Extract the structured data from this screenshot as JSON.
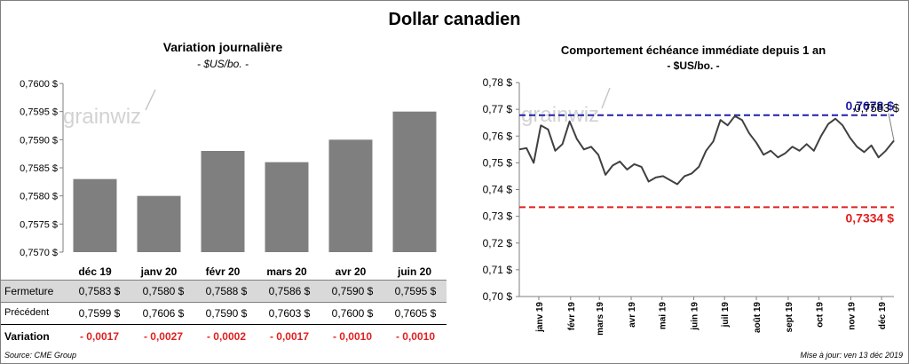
{
  "title": "Dollar canadien",
  "left": {
    "title": "Variation  journalière",
    "subtitle": "- $US/bo. -",
    "watermark": "grainwiz",
    "table": {
      "row_labels": {
        "close": "Fermeture",
        "previous": "Précédent",
        "change": "Variation"
      },
      "close": [
        "0,7583  $",
        "0,7580  $",
        "0,7588  $",
        "0,7586  $",
        "0,7590  $",
        "0,7595  $"
      ],
      "previous": [
        "0,7599  $",
        "0,7606  $",
        "0,7590  $",
        "0,7603  $",
        "0,7600  $",
        "0,7605  $"
      ],
      "change": [
        "- 0,0017",
        "- 0,0027",
        "- 0,0002",
        "- 0,0017",
        "- 0,0010",
        "- 0,0010"
      ]
    }
  },
  "right": {
    "title": "Comportement échéance immédiate depuis 1 an",
    "subtitle": "- $US/bo. -",
    "watermark": "grainwiz",
    "high_label": "0,7678 $",
    "low_label": "0,7334 $",
    "last_label": "0,7583 $"
  },
  "footer": {
    "source": "Source: CME Group",
    "updated": "Mise à jour: ven 13 déc 2019"
  },
  "colors": {
    "bar": "#7f7f7f",
    "line": "#404040",
    "high": "#1f1fa8",
    "low": "#e02020",
    "negative": "#e02020"
  },
  "chart_data": [
    {
      "type": "bar",
      "title": "Variation  journalière",
      "subtitle": "- $US/bo. -",
      "categories": [
        "déc 19",
        "janv 20",
        "févr 20",
        "mars 20",
        "avr 20",
        "juin 20"
      ],
      "values": [
        0.7583,
        0.758,
        0.7588,
        0.7586,
        0.759,
        0.7595
      ],
      "ylim": [
        0.757,
        0.76
      ],
      "yticks": [
        0.757,
        0.7575,
        0.758,
        0.7585,
        0.759,
        0.7595,
        0.76
      ],
      "ytick_labels": [
        "0,7570 $",
        "0,7575 $",
        "0,7580 $",
        "0,7585 $",
        "0,7590 $",
        "0,7595 $",
        "0,7600 $"
      ],
      "grid": false
    },
    {
      "type": "line",
      "title": "Comportement échéance immédiate depuis 1 an",
      "subtitle": "- $US/bo. -",
      "x_start": "2018-12-13",
      "x_end": "2019-12-13",
      "x": [
        "2018-12-13",
        "2018-12-20",
        "2018-12-27",
        "2019-01-03",
        "2019-01-10",
        "2019-01-17",
        "2019-01-24",
        "2019-01-31",
        "2019-02-07",
        "2019-02-14",
        "2019-02-21",
        "2019-02-28",
        "2019-03-07",
        "2019-03-14",
        "2019-03-21",
        "2019-03-28",
        "2019-04-04",
        "2019-04-11",
        "2019-04-18",
        "2019-04-25",
        "2019-05-02",
        "2019-05-09",
        "2019-05-16",
        "2019-05-23",
        "2019-05-30",
        "2019-06-06",
        "2019-06-13",
        "2019-06-20",
        "2019-06-27",
        "2019-07-04",
        "2019-07-11",
        "2019-07-18",
        "2019-07-25",
        "2019-08-01",
        "2019-08-08",
        "2019-08-15",
        "2019-08-22",
        "2019-08-29",
        "2019-09-05",
        "2019-09-12",
        "2019-09-19",
        "2019-09-26",
        "2019-10-03",
        "2019-10-10",
        "2019-10-17",
        "2019-10-24",
        "2019-10-31",
        "2019-11-07",
        "2019-11-14",
        "2019-11-21",
        "2019-11-28",
        "2019-12-05",
        "2019-12-13"
      ],
      "values": [
        0.755,
        0.7555,
        0.75,
        0.764,
        0.7625,
        0.7545,
        0.757,
        0.7655,
        0.759,
        0.755,
        0.756,
        0.753,
        0.7455,
        0.749,
        0.7505,
        0.7475,
        0.7495,
        0.7485,
        0.743,
        0.7445,
        0.745,
        0.7435,
        0.742,
        0.745,
        0.746,
        0.7485,
        0.7545,
        0.758,
        0.766,
        0.764,
        0.7675,
        0.766,
        0.761,
        0.7575,
        0.753,
        0.7545,
        0.752,
        0.7535,
        0.756,
        0.7545,
        0.757,
        0.7545,
        0.76,
        0.7645,
        0.7665,
        0.764,
        0.7595,
        0.756,
        0.754,
        0.7565,
        0.752,
        0.7545,
        0.7583
      ],
      "ylim": [
        0.7,
        0.78
      ],
      "yticks": [
        0.7,
        0.71,
        0.72,
        0.73,
        0.74,
        0.75,
        0.76,
        0.77,
        0.78
      ],
      "ytick_labels": [
        "0,70 $",
        "0,71 $",
        "0,72 $",
        "0,73 $",
        "0,74 $",
        "0,75 $",
        "0,76 $",
        "0,77 $",
        "0,78 $"
      ],
      "xticks": [
        "2019-01-01",
        "2019-02-01",
        "2019-03-01",
        "2019-04-01",
        "2019-05-01",
        "2019-06-01",
        "2019-07-01",
        "2019-08-01",
        "2019-09-01",
        "2019-10-01",
        "2019-11-01",
        "2019-12-01"
      ],
      "xtick_labels": [
        "janv 19",
        "févr 19",
        "mars 19",
        "avr 19",
        "mai 19",
        "juin 19",
        "juil 19",
        "août 19",
        "sept 19",
        "oct 19",
        "nov 19",
        "déc 19"
      ],
      "high": 0.7678,
      "low": 0.7334,
      "grid": false
    }
  ]
}
